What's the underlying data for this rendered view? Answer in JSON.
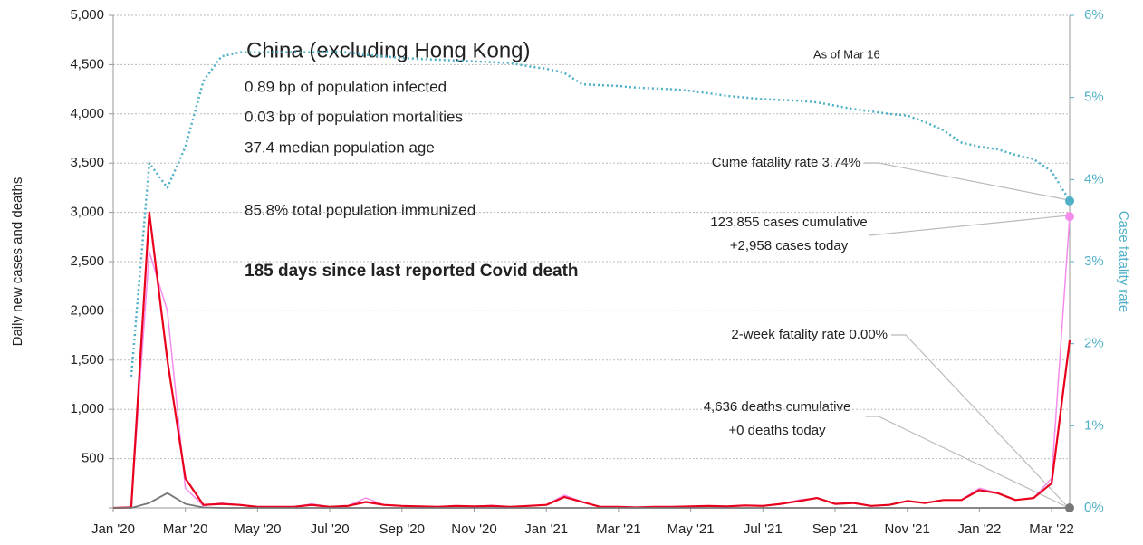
{
  "chart_data": {
    "type": "line",
    "ylabel": "Daily new cases and deaths",
    "y2label": "Case fatality rate",
    "categories": [
      "Jan '20",
      null,
      null,
      null,
      "Mar '20",
      null,
      null,
      null,
      "May '20",
      null,
      null,
      null,
      "Jul '20",
      null,
      null,
      null,
      "Sep '20",
      null,
      null,
      null,
      "Nov '20",
      null,
      null,
      null,
      "Jan '21",
      null,
      null,
      null,
      "Mar '21",
      null,
      null,
      null,
      "May '21",
      null,
      null,
      null,
      "Jul '21",
      null,
      null,
      null,
      "Sep '21",
      null,
      null,
      null,
      "Nov '21",
      null,
      null,
      null,
      "Jan '22",
      null,
      null,
      null,
      "Mar '22",
      null
    ],
    "ylim": [
      0,
      5000
    ],
    "yticks": [
      {
        "value": 0,
        "label": ""
      },
      500,
      {
        "value": 1000,
        "label": "1,000"
      },
      {
        "value": 1500,
        "label": "1,500"
      },
      {
        "value": 2000,
        "label": "2,000"
      },
      {
        "value": 2500,
        "label": "2,500"
      },
      {
        "value": 3000,
        "label": "3,000"
      },
      {
        "value": 3500,
        "label": "3,500"
      },
      {
        "value": 4000,
        "label": "4,000"
      },
      {
        "value": 4500,
        "label": "4,500"
      },
      {
        "value": 5000,
        "label": "5,000"
      }
    ],
    "y2lim": [
      0,
      6
    ],
    "y2ticks": [
      {
        "value": 0,
        "label": "0%"
      },
      {
        "value": 1,
        "label": "1%"
      },
      {
        "value": 2,
        "label": "2%"
      },
      {
        "value": 3,
        "label": "3%"
      },
      {
        "value": 4,
        "label": "4%"
      },
      {
        "value": 5,
        "label": "5%"
      },
      {
        "value": 6,
        "label": "6%"
      }
    ],
    "grid": true,
    "series": [
      {
        "color": "#f58cec",
        "width": 1.5,
        "values": [
          0,
          10,
          2600,
          2000,
          200,
          20,
          50,
          30,
          10,
          10,
          10,
          40,
          10,
          20,
          100,
          30,
          20,
          15,
          10,
          20,
          15,
          25,
          10,
          20,
          30,
          130,
          60,
          10,
          10,
          5,
          10,
          10,
          15,
          20,
          15,
          25,
          20,
          40,
          80,
          100,
          40,
          50,
          20,
          30,
          70,
          50,
          80,
          80,
          200,
          150,
          80,
          100,
          300,
          2958
        ]
      },
      {
        "color": "#e8001c",
        "width": 2.2,
        "values": [
          0,
          5,
          3000,
          1500,
          300,
          30,
          40,
          30,
          10,
          10,
          10,
          30,
          10,
          20,
          60,
          30,
          20,
          15,
          10,
          20,
          15,
          20,
          10,
          20,
          30,
          110,
          60,
          10,
          10,
          5,
          10,
          10,
          15,
          20,
          15,
          25,
          20,
          40,
          70,
          100,
          40,
          50,
          20,
          30,
          70,
          50,
          80,
          80,
          180,
          150,
          80,
          100,
          250,
          1700
        ]
      },
      {
        "color": "#777777",
        "width": 1.8,
        "values": [
          0,
          0,
          50,
          150,
          40,
          5,
          0,
          0,
          0,
          0,
          0,
          0,
          0,
          0,
          0,
          0,
          0,
          0,
          0,
          0,
          0,
          0,
          0,
          0,
          0,
          0,
          0,
          0,
          0,
          0,
          0,
          0,
          0,
          0,
          0,
          0,
          0,
          0,
          0,
          0,
          0,
          0,
          0,
          0,
          0,
          0,
          0,
          0,
          0,
          0,
          0,
          0,
          0,
          0
        ]
      },
      {
        "color": "#4fb0c6",
        "width": 2.5,
        "dash": true,
        "axis": "y2",
        "values": [
          null,
          1.6,
          4.2,
          3.9,
          4.4,
          5.2,
          5.5,
          5.55,
          5.55,
          5.55,
          5.55,
          5.55,
          5.56,
          5.55,
          5.52,
          5.5,
          5.48,
          5.47,
          5.46,
          5.45,
          5.44,
          5.43,
          5.42,
          5.38,
          5.35,
          5.3,
          5.16,
          5.15,
          5.14,
          5.12,
          5.11,
          5.1,
          5.08,
          5.05,
          5.02,
          5.0,
          4.98,
          4.97,
          4.96,
          4.94,
          4.9,
          4.86,
          4.83,
          4.8,
          4.78,
          4.7,
          4.6,
          4.45,
          4.4,
          4.37,
          4.3,
          4.25,
          4.1,
          3.74
        ]
      }
    ],
    "annotations": [
      "China (excluding Hong Kong)",
      "0.89 bp of population infected",
      "0.03 bp of population mortalities",
      "37.4 median population age",
      "85.8% total population immunized",
      "185 days since last reported Covid death",
      "As of Mar 16",
      "Cume fatality rate 3.74%",
      "123,855 cases cumulative",
      "+2,958 cases today",
      "2-week fatality rate 0.00%",
      "4,636 deaths cumulative",
      "+0 deaths today"
    ]
  }
}
